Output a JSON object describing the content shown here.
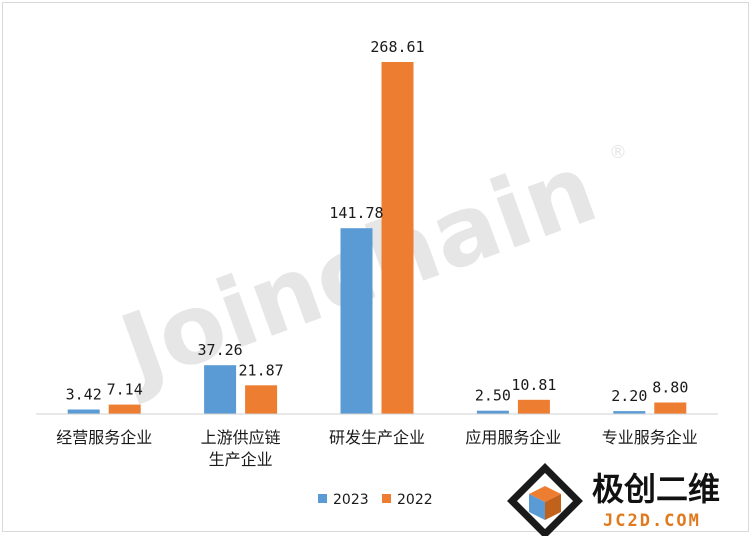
{
  "chart_data": {
    "type": "bar",
    "categories": [
      "经营服务企业",
      "上游供应链生产企业",
      "研发生产企业",
      "应用服务企业",
      "专业服务企业"
    ],
    "category_lines": [
      [
        "经营服务企业"
      ],
      [
        "上游供应链",
        "生产企业"
      ],
      [
        "研发生产企业"
      ],
      [
        "应用服务企业"
      ],
      [
        "专业服务企业"
      ]
    ],
    "series": [
      {
        "name": "2023",
        "color": "#5b9bd5",
        "values": [
          3.42,
          37.26,
          141.78,
          2.5,
          2.2
        ],
        "labels": [
          "3.42",
          "37.26",
          "141.78",
          "2.50",
          "2.20"
        ]
      },
      {
        "name": "2022",
        "color": "#ed7d31",
        "values": [
          7.14,
          21.87,
          268.61,
          10.81,
          8.8
        ],
        "labels": [
          "7.14",
          "21.87",
          "268.61",
          "10.81",
          "8.80"
        ]
      }
    ],
    "ylim": [
      0,
      268.61
    ],
    "grid": false,
    "legend_position": "bottom"
  },
  "watermark": {
    "text": "Joinchain",
    "mark": "®"
  },
  "logo": {
    "cn": "极创二维",
    "en": "JC2D.COM"
  }
}
